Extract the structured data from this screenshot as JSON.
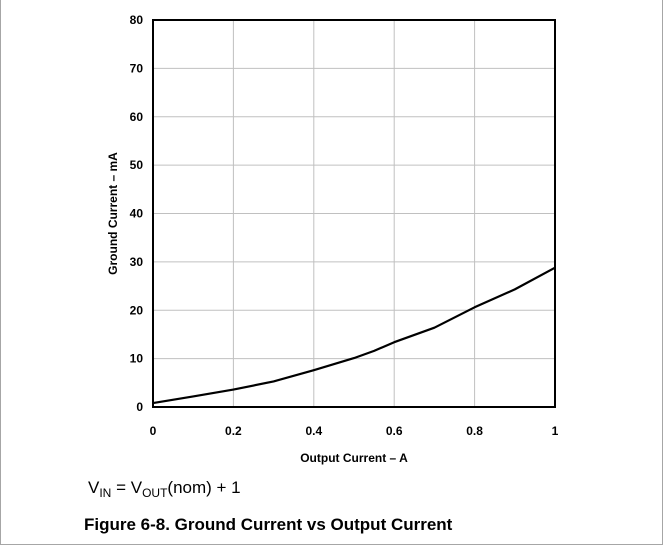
{
  "chart_data": {
    "type": "line",
    "xlabel": "Output Current – A",
    "ylabel": "Ground Current – mA",
    "xlim": [
      0,
      1
    ],
    "ylim": [
      0,
      80
    ],
    "x_ticks": [
      "0",
      "0.2",
      "0.4",
      "0.6",
      "0.8",
      "1"
    ],
    "y_ticks": [
      "0",
      "10",
      "20",
      "30",
      "40",
      "50",
      "60",
      "70",
      "80"
    ],
    "grid": true,
    "series": [
      {
        "x": [
          0,
          0.1,
          0.2,
          0.3,
          0.4,
          0.5,
          0.55,
          0.6,
          0.7,
          0.8,
          0.9,
          1.0
        ],
        "y": [
          0.8,
          2.2,
          3.6,
          5.3,
          7.6,
          10.1,
          11.6,
          13.4,
          16.4,
          20.6,
          24.3,
          28.8
        ]
      }
    ],
    "line_color": "#000000",
    "grid_color": "#c0c0c0"
  },
  "condition": {
    "v_in_main": "V",
    "v_in_sub": "IN",
    "equals": " = V",
    "v_out_sub": "OUT",
    "rest": "(nom) + 1"
  },
  "caption": "Figure 6-8. Ground Current vs Output Current"
}
